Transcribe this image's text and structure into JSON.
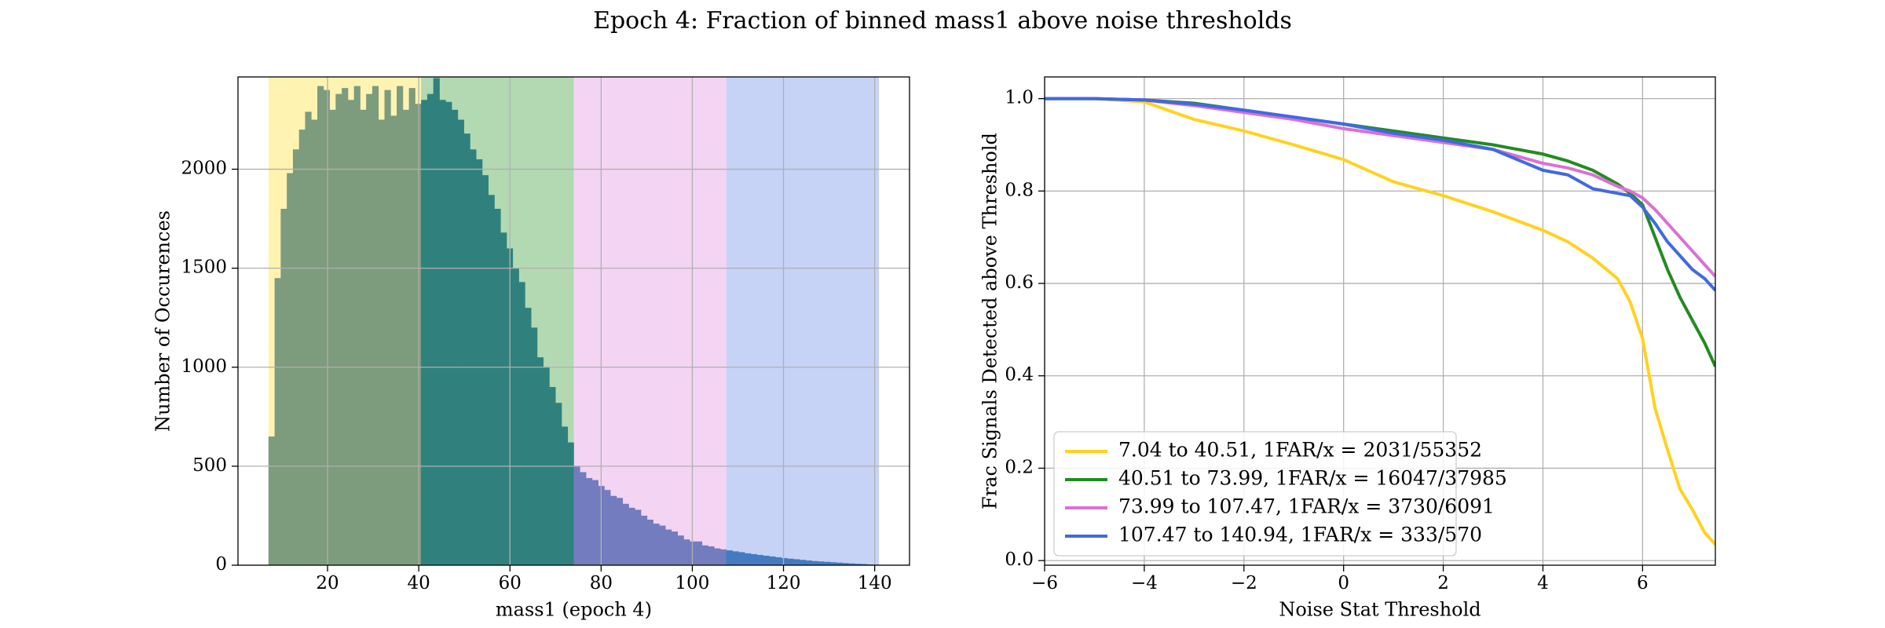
{
  "title": "Epoch 4: Fraction of binned mass1 above noise thresholds",
  "chart_data": [
    {
      "type": "histogram",
      "xlabel": "mass1 (epoch 4)",
      "ylabel": "Number of Occurences",
      "color": "#4682b4",
      "bins": [
        7.04,
        8.38,
        9.72,
        11.06,
        12.4,
        13.74,
        15.07,
        16.41,
        17.75,
        19.09,
        20.43,
        21.77,
        23.11,
        24.45,
        25.79,
        27.13,
        28.46,
        29.8,
        31.14,
        32.48,
        33.82,
        35.16,
        36.5,
        37.84,
        39.18,
        40.52,
        41.85,
        43.19,
        44.53,
        45.87,
        47.21,
        48.55,
        49.89,
        51.23,
        52.57,
        53.91,
        55.24,
        56.58,
        57.92,
        59.26,
        60.6,
        61.94,
        63.28,
        64.62,
        65.96,
        67.3,
        68.63,
        69.97,
        71.31,
        72.65,
        73.99,
        75.33,
        76.67,
        78.01,
        79.35,
        80.69,
        82.02,
        83.36,
        84.7,
        86.04,
        87.38,
        88.72,
        90.06,
        91.4,
        92.74,
        94.08,
        95.41,
        96.75,
        98.09,
        99.43,
        100.77,
        102.11,
        103.45,
        104.79,
        106.13,
        107.47,
        108.8,
        110.14,
        111.48,
        112.82,
        114.16,
        115.5,
        116.84,
        118.18,
        119.52,
        120.86,
        122.19,
        123.53,
        124.87,
        126.21,
        127.55,
        128.89,
        130.23,
        131.57,
        132.91,
        134.25,
        135.58,
        136.92,
        138.26,
        139.6,
        140.94
      ],
      "values": [
        650,
        1450,
        1800,
        1980,
        2100,
        2200,
        2290,
        2250,
        2420,
        2400,
        2300,
        2380,
        2410,
        2350,
        2420,
        2300,
        2380,
        2420,
        2250,
        2400,
        2270,
        2420,
        2300,
        2410,
        2330,
        2350,
        2380,
        2460,
        2350,
        2340,
        2300,
        2250,
        2180,
        2100,
        2050,
        1970,
        1870,
        1800,
        1680,
        1600,
        1500,
        1430,
        1300,
        1200,
        1050,
        1000,
        900,
        820,
        700,
        620,
        500,
        470,
        440,
        430,
        400,
        380,
        350,
        340,
        310,
        290,
        280,
        250,
        230,
        210,
        200,
        180,
        170,
        150,
        130,
        120,
        120,
        100,
        95,
        85,
        80,
        75,
        70,
        66,
        60,
        56,
        52,
        48,
        44,
        40,
        36,
        33,
        30,
        27,
        24,
        21,
        19,
        17,
        15,
        13,
        11,
        9,
        7,
        6,
        4,
        3
      ],
      "spans": [
        {
          "range": [
            7.04,
            40.51
          ],
          "color": "#ffd700"
        },
        {
          "range": [
            40.51,
            73.99
          ],
          "color": "#008000"
        },
        {
          "range": [
            73.99,
            107.47
          ],
          "color": "#da70d6"
        },
        {
          "range": [
            107.47,
            140.94
          ],
          "color": "#4169e1"
        }
      ],
      "xlim": [
        0.35,
        147.64
      ],
      "ylim": [
        0,
        2466
      ],
      "xticks": [
        20,
        40,
        60,
        80,
        100,
        120,
        140
      ],
      "yticks": [
        0,
        500,
        1000,
        1500,
        2000
      ],
      "grid": true
    },
    {
      "type": "line",
      "xlabel": "Noise Stat Threshold",
      "ylabel": "Frac Signals Detected above Threshold",
      "x": [
        -6,
        -5,
        -4,
        -3,
        -2,
        -1,
        0,
        1,
        2,
        3,
        4,
        4.5,
        5,
        5.5,
        5.75,
        6,
        6.25,
        6.5,
        6.75,
        7,
        7.25,
        7.46
      ],
      "series": [
        {
          "name": "7.04 to 40.51, 1FAR/x = 2031/55352",
          "color": "#ffd21f",
          "values": [
            1.0,
            1.0,
            0.993,
            0.955,
            0.93,
            0.9,
            0.868,
            0.82,
            0.79,
            0.755,
            0.715,
            0.69,
            0.655,
            0.61,
            0.56,
            0.48,
            0.33,
            0.24,
            0.155,
            0.11,
            0.06,
            0.035
          ]
        },
        {
          "name": "40.51 to 73.99, 1FAR/x = 16047/37985",
          "color": "#228b22",
          "values": [
            1.0,
            1.0,
            0.997,
            0.99,
            0.975,
            0.96,
            0.945,
            0.93,
            0.915,
            0.9,
            0.88,
            0.865,
            0.845,
            0.815,
            0.795,
            0.77,
            0.7,
            0.63,
            0.57,
            0.52,
            0.47,
            0.42
          ]
        },
        {
          "name": "73.99 to 107.47, 1FAR/x = 3730/6091",
          "color": "#da70d6",
          "values": [
            1.0,
            1.0,
            0.997,
            0.985,
            0.97,
            0.955,
            0.935,
            0.92,
            0.905,
            0.89,
            0.86,
            0.85,
            0.835,
            0.81,
            0.8,
            0.785,
            0.76,
            0.73,
            0.7,
            0.67,
            0.64,
            0.615
          ]
        },
        {
          "name": "107.47 to 140.94, 1FAR/x = 333/570",
          "color": "#4169e1",
          "values": [
            1.0,
            1.0,
            0.997,
            0.988,
            0.975,
            0.96,
            0.945,
            0.925,
            0.91,
            0.89,
            0.845,
            0.835,
            0.805,
            0.795,
            0.79,
            0.765,
            0.73,
            0.69,
            0.66,
            0.63,
            0.61,
            0.585
          ]
        }
      ],
      "xlim": [
        -6,
        7.46
      ],
      "ylim": [
        -0.01,
        1.047
      ],
      "xticks": [
        {
          "value": -6,
          "label": "−6"
        },
        {
          "value": -4,
          "label": "−4"
        },
        {
          "value": -2,
          "label": "−2"
        },
        0,
        2,
        4,
        6
      ],
      "yticks": [
        {
          "value": 0,
          "label": "0.0"
        },
        {
          "value": 0.2,
          "label": "0.2"
        },
        {
          "value": 0.4,
          "label": "0.4"
        },
        {
          "value": 0.6,
          "label": "0.6"
        },
        {
          "value": 0.8,
          "label": "0.8"
        },
        {
          "value": 1.0,
          "label": "1.0"
        }
      ],
      "grid": true,
      "legend": "lower left"
    }
  ]
}
